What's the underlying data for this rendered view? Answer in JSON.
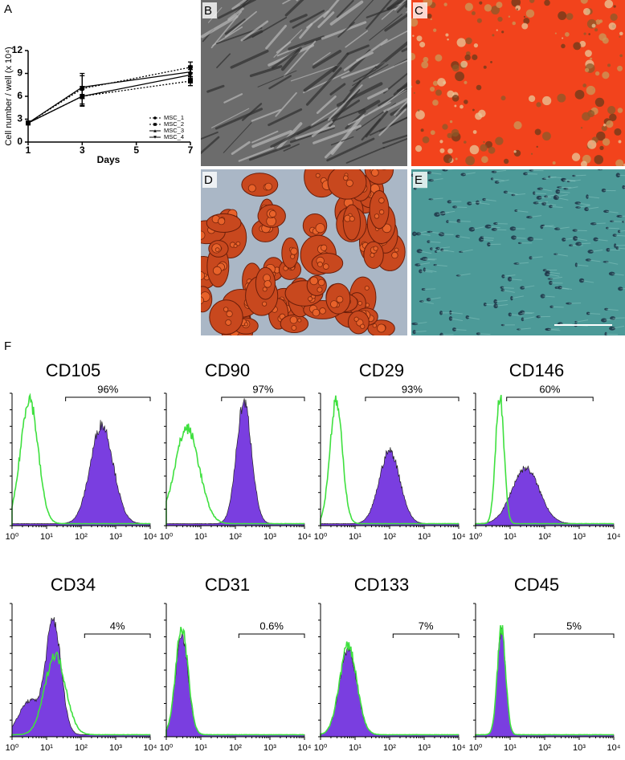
{
  "panel_labels": [
    "A",
    "B",
    "C",
    "D",
    "E",
    "F"
  ],
  "chart_data": {
    "type": "line",
    "xlabel": "Days",
    "ylabel": "Cell number / well (x 10⁴)",
    "x": [
      1,
      3,
      7
    ],
    "xlim": [
      1,
      7
    ],
    "xticks": [
      1,
      3,
      5,
      7
    ],
    "ylim": [
      0,
      12
    ],
    "yticks": [
      0,
      3,
      6,
      9,
      12
    ],
    "series": [
      {
        "name": "MSC_1",
        "color": "#000000",
        "dashed": true,
        "marker": "circle",
        "values": [
          2.5,
          7.0,
          9.8
        ],
        "errors": [
          0.2,
          2.0,
          0.7
        ]
      },
      {
        "name": "MSC_2",
        "color": "#000000",
        "dashed": true,
        "marker": "square",
        "values": [
          2.5,
          6.0,
          8.0
        ],
        "errors": [
          0.2,
          1.2,
          0.6
        ]
      },
      {
        "name": "MSC_3",
        "color": "#000000",
        "dashed": false,
        "marker": "triangle-up",
        "values": [
          2.5,
          7.2,
          9.2
        ],
        "errors": [
          0.2,
          1.5,
          0.8
        ]
      },
      {
        "name": "MSC_4",
        "color": "#000000",
        "dashed": false,
        "marker": "triangle-down",
        "values": [
          2.5,
          6.0,
          8.8
        ],
        "errors": [
          0.2,
          1.3,
          0.7
        ]
      }
    ]
  },
  "flow": {
    "x_tick_labels": [
      "10⁰",
      "10¹",
      "10²",
      "10³",
      "10⁴"
    ],
    "markers": [
      {
        "name": "CD105",
        "percent": "96%"
      },
      {
        "name": "CD90",
        "percent": "97%"
      },
      {
        "name": "CD29",
        "percent": "93%"
      },
      {
        "name": "CD146",
        "percent": "60%"
      },
      {
        "name": "CD34",
        "percent": "4%"
      },
      {
        "name": "CD31",
        "percent": "0.6%"
      },
      {
        "name": "CD133",
        "percent": "7%"
      },
      {
        "name": "CD45",
        "percent": "5%"
      }
    ]
  }
}
